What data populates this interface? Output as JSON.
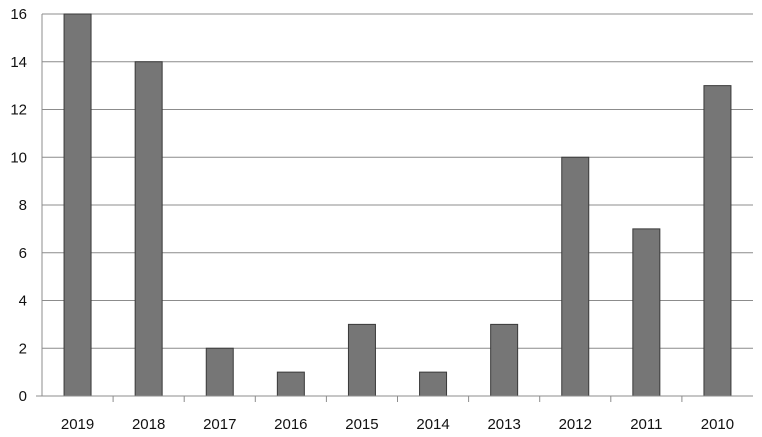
{
  "chart_data": {
    "type": "bar",
    "title": "",
    "xlabel": "",
    "ylabel": "",
    "categories": [
      "2019",
      "2018",
      "2017",
      "2016",
      "2015",
      "2014",
      "2013",
      "2012",
      "2011",
      "2010"
    ],
    "values": [
      16,
      14,
      2,
      1,
      3,
      1,
      3,
      10,
      7,
      13
    ],
    "ylim": [
      0,
      16
    ],
    "yticks": [
      "0",
      "2",
      "4",
      "6",
      "8",
      "10",
      "12",
      "14",
      "16"
    ],
    "grid": true,
    "legend": "none",
    "colors": {
      "bar": "#767676",
      "bar_edge": "#3a3a3a",
      "grid": "#8c8c8c"
    }
  }
}
